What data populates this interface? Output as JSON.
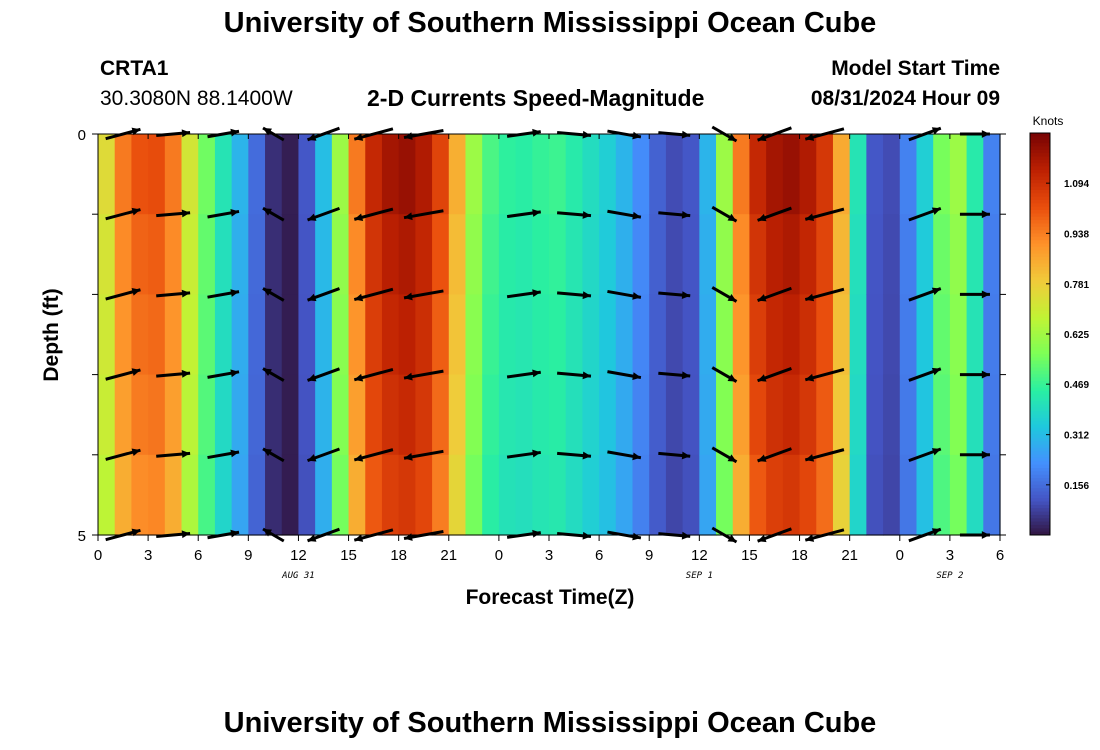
{
  "header": {
    "title": "University of Southern Mississippi Ocean Cube",
    "station": "CRTA1",
    "coords": "30.3080N  88.1400W",
    "subtitle": "2-D Currents Speed-Magnitude",
    "model_label": "Model Start Time",
    "model_time": "08/31/2024 Hour 09"
  },
  "footer": {
    "title": "University of Southern Mississippi Ocean Cube"
  },
  "chart_data": {
    "type": "heatmap",
    "title": "2-D Currents Speed-Magnitude",
    "xlabel": "Forecast Time(Z)",
    "ylabel": "Depth (ft)",
    "x_tick_labels": [
      "0",
      "3",
      "6",
      "9",
      "12",
      "15",
      "18",
      "21",
      "0",
      "3",
      "6",
      "9",
      "12",
      "15",
      "18",
      "21",
      "0",
      "3",
      "6"
    ],
    "x_range_hours": [
      0,
      54
    ],
    "date_labels": [
      {
        "hour": 12,
        "text": "AUG 31"
      },
      {
        "hour": 36,
        "text": "SEP 1"
      },
      {
        "hour": 51,
        "text": "SEP 2"
      }
    ],
    "y_tick_labels": [
      "0",
      "5"
    ],
    "y_range_ft": [
      0,
      5
    ],
    "colorbar": {
      "units": "Knots",
      "ticks": [
        "0.156",
        "0.312",
        "0.469",
        "0.625",
        "0.781",
        "0.938",
        "1.094"
      ],
      "range": [
        0,
        1.25
      ],
      "colors": [
        "#30123b",
        "#4454c4",
        "#4490fe",
        "#1fc8de",
        "#29efa2",
        "#7dff56",
        "#c1f334",
        "#f1ca3a",
        "#fe922a",
        "#ea4f0d",
        "#be2102",
        "#7a0403"
      ]
    },
    "speed_knots_by_hour": [
      0.75,
      0.95,
      1.02,
      1.03,
      0.95,
      0.72,
      0.55,
      0.42,
      0.3,
      0.16,
      0.05,
      0.02,
      0.12,
      0.32,
      0.62,
      0.95,
      1.12,
      1.18,
      1.2,
      1.16,
      1.05,
      0.85,
      0.62,
      0.5,
      0.46,
      0.45,
      0.47,
      0.48,
      0.44,
      0.4,
      0.36,
      0.3,
      0.22,
      0.14,
      0.1,
      0.12,
      0.3,
      0.62,
      0.95,
      1.12,
      1.18,
      1.2,
      1.16,
      1.08,
      0.86,
      0.42,
      0.12,
      0.1,
      0.2,
      0.36,
      0.56,
      0.62,
      0.44,
      0.2,
      0.05
    ],
    "arrows": [
      {
        "hour": 1.5,
        "dir_deg": 75,
        "len": 0.9
      },
      {
        "hour": 4.5,
        "dir_deg": 85,
        "len": 0.85
      },
      {
        "hour": 7.5,
        "dir_deg": 80,
        "len": 0.8
      },
      {
        "hour": 10.5,
        "dir_deg": 300,
        "len": 0.6
      },
      {
        "hour": 13.5,
        "dir_deg": 250,
        "len": 0.85
      },
      {
        "hour": 16.5,
        "dir_deg": 255,
        "len": 1.0
      },
      {
        "hour": 19.5,
        "dir_deg": 260,
        "len": 1.0
      },
      {
        "hour": 25.5,
        "dir_deg": 82,
        "len": 0.85
      },
      {
        "hour": 28.5,
        "dir_deg": 95,
        "len": 0.85
      },
      {
        "hour": 31.5,
        "dir_deg": 100,
        "len": 0.85
      },
      {
        "hour": 34.5,
        "dir_deg": 95,
        "len": 0.8
      },
      {
        "hour": 37.5,
        "dir_deg": 120,
        "len": 0.7
      },
      {
        "hour": 40.5,
        "dir_deg": 250,
        "len": 0.9
      },
      {
        "hour": 43.5,
        "dir_deg": 255,
        "len": 1.0
      },
      {
        "hour": 49.5,
        "dir_deg": 70,
        "len": 0.85
      },
      {
        "hour": 52.5,
        "dir_deg": 90,
        "len": 0.75
      }
    ]
  }
}
